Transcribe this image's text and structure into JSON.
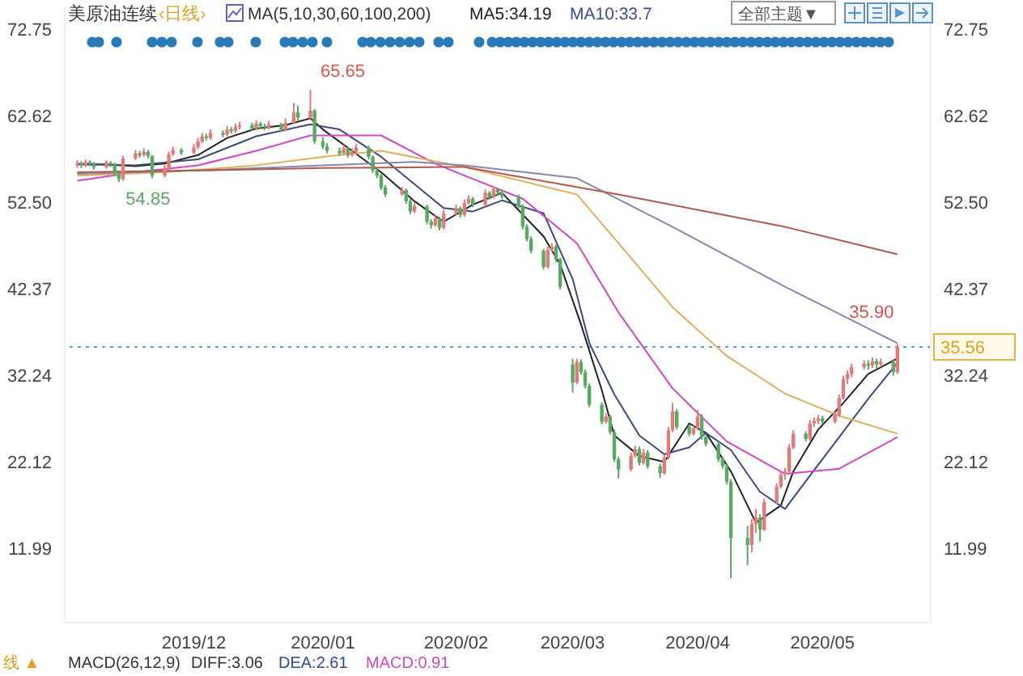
{
  "chart_data": {
    "type": "candlestick",
    "title": "美原油连续",
    "subtitle": "‹日线›",
    "x": [
      "2019-11-04",
      "2019-11-05",
      "2019-11-06",
      "2019-11-07",
      "2019-11-08",
      "2019-11-11",
      "2019-11-12",
      "2019-11-13",
      "2019-11-14",
      "2019-11-15",
      "2019-11-18",
      "2019-11-19",
      "2019-11-20",
      "2019-11-21",
      "2019-11-22",
      "2019-11-25",
      "2019-11-26",
      "2019-11-27",
      "2019-11-29",
      "2019-12-02",
      "2019-12-03",
      "2019-12-04",
      "2019-12-05",
      "2019-12-06",
      "2019-12-09",
      "2019-12-10",
      "2019-12-11",
      "2019-12-12",
      "2019-12-13",
      "2019-12-16",
      "2019-12-17",
      "2019-12-18",
      "2019-12-19",
      "2019-12-20",
      "2019-12-23",
      "2019-12-24",
      "2019-12-26",
      "2019-12-27",
      "2019-12-30",
      "2019-12-31",
      "2020-01-02",
      "2020-01-03",
      "2020-01-06",
      "2020-01-07",
      "2020-01-08",
      "2020-01-09",
      "2020-01-10",
      "2020-01-13",
      "2020-01-14",
      "2020-01-15",
      "2020-01-16",
      "2020-01-17",
      "2020-01-21",
      "2020-01-22",
      "2020-01-23",
      "2020-01-24",
      "2020-01-27",
      "2020-01-28",
      "2020-01-29",
      "2020-01-30",
      "2020-01-31",
      "2020-02-03",
      "2020-02-04",
      "2020-02-05",
      "2020-02-06",
      "2020-02-07",
      "2020-02-10",
      "2020-02-11",
      "2020-02-12",
      "2020-02-13",
      "2020-02-14",
      "2020-02-18",
      "2020-02-19",
      "2020-02-20",
      "2020-02-21",
      "2020-02-24",
      "2020-02-25",
      "2020-02-26",
      "2020-02-27",
      "2020-02-28",
      "2020-03-02",
      "2020-03-03",
      "2020-03-04",
      "2020-03-05",
      "2020-03-06",
      "2020-03-09",
      "2020-03-10",
      "2020-03-11",
      "2020-03-12",
      "2020-03-13",
      "2020-03-16",
      "2020-03-17",
      "2020-03-18",
      "2020-03-19",
      "2020-03-20",
      "2020-03-23",
      "2020-03-24",
      "2020-03-25",
      "2020-03-26",
      "2020-03-27",
      "2020-03-30",
      "2020-03-31",
      "2020-04-01",
      "2020-04-02",
      "2020-04-03",
      "2020-04-06",
      "2020-04-07",
      "2020-04-08",
      "2020-04-09",
      "2020-04-13",
      "2020-04-14",
      "2020-04-15",
      "2020-04-16",
      "2020-04-17",
      "2020-04-20",
      "2020-04-21",
      "2020-04-22",
      "2020-04-23",
      "2020-04-24",
      "2020-04-27",
      "2020-04-28",
      "2020-04-29",
      "2020-04-30",
      "2020-05-01",
      "2020-05-04",
      "2020-05-05",
      "2020-05-06",
      "2020-05-07",
      "2020-05-08",
      "2020-05-11",
      "2020-05-12",
      "2020-05-13",
      "2020-05-14",
      "2020-05-15",
      "2020-05-18",
      "2020-05-19"
    ],
    "ohlc": [
      [
        56.8,
        57.4,
        56.5,
        57.0
      ],
      [
        57.0,
        57.3,
        56.5,
        56.8
      ],
      [
        56.8,
        57.5,
        56.6,
        57.2
      ],
      [
        57.2,
        57.4,
        56.7,
        57.0
      ],
      [
        57.0,
        57.2,
        56.3,
        56.6
      ],
      [
        56.6,
        57.4,
        56.4,
        57.1
      ],
      [
        57.1,
        57.3,
        56.6,
        56.9
      ],
      [
        56.9,
        57.1,
        55.5,
        55.8
      ],
      [
        55.8,
        56.0,
        54.85,
        55.2
      ],
      [
        55.2,
        57.9,
        55.0,
        57.6
      ],
      [
        57.6,
        58.6,
        57.4,
        58.2
      ],
      [
        58.2,
        58.5,
        57.7,
        58.0
      ],
      [
        58.0,
        58.8,
        57.8,
        58.4
      ],
      [
        58.4,
        58.6,
        57.6,
        57.9
      ],
      [
        57.9,
        58.0,
        55.3,
        55.6
      ],
      [
        55.6,
        56.9,
        55.4,
        56.5
      ],
      [
        56.5,
        58.4,
        56.3,
        58.1
      ],
      [
        58.1,
        59.0,
        57.9,
        58.6
      ],
      [
        58.6,
        58.8,
        58.0,
        58.3
      ],
      [
        58.3,
        59.3,
        58.1,
        58.9
      ],
      [
        58.9,
        60.0,
        58.7,
        59.6
      ],
      [
        59.6,
        60.6,
        59.4,
        60.2
      ],
      [
        60.2,
        60.5,
        59.7,
        60.0
      ],
      [
        60.0,
        61.0,
        59.8,
        60.6
      ],
      [
        60.6,
        60.9,
        60.1,
        60.4
      ],
      [
        60.4,
        61.4,
        60.2,
        61.0
      ],
      [
        61.0,
        61.3,
        60.5,
        60.8
      ],
      [
        60.8,
        61.7,
        60.6,
        61.3
      ],
      [
        61.3,
        61.9,
        61.0,
        61.5
      ],
      [
        61.5,
        61.8,
        60.8,
        61.1
      ],
      [
        61.1,
        62.1,
        60.9,
        61.7
      ],
      [
        61.7,
        61.9,
        61.1,
        61.4
      ],
      [
        61.4,
        61.7,
        60.9,
        61.2
      ],
      [
        61.2,
        62.0,
        61.0,
        61.6
      ],
      [
        61.6,
        61.8,
        60.7,
        61.0
      ],
      [
        61.0,
        62.3,
        60.8,
        61.8
      ],
      [
        61.8,
        64.1,
        61.6,
        63.0
      ],
      [
        63.0,
        63.8,
        62.0,
        62.4
      ],
      [
        62.4,
        65.65,
        62.2,
        63.2
      ],
      [
        63.2,
        63.4,
        59.3,
        59.6
      ],
      [
        59.6,
        60.1,
        58.7,
        59.0
      ],
      [
        59.0,
        59.4,
        58.2,
        58.5
      ],
      [
        58.5,
        58.9,
        57.9,
        58.2
      ],
      [
        58.2,
        59.2,
        58.0,
        58.8
      ],
      [
        58.8,
        59.0,
        57.7,
        58.0
      ],
      [
        58.0,
        58.8,
        57.8,
        58.4
      ],
      [
        58.4,
        59.3,
        58.2,
        58.9
      ],
      [
        58.9,
        59.1,
        57.5,
        57.8
      ],
      [
        57.8,
        58.0,
        55.9,
        56.2
      ],
      [
        56.2,
        56.5,
        55.3,
        55.6
      ],
      [
        55.6,
        55.8,
        53.9,
        54.2
      ],
      [
        54.2,
        54.5,
        53.1,
        53.4
      ],
      [
        53.4,
        54.3,
        53.2,
        53.9
      ],
      [
        53.9,
        54.1,
        52.3,
        52.6
      ],
      [
        52.6,
        52.9,
        51.1,
        51.4
      ],
      [
        51.4,
        52.4,
        51.2,
        52.0
      ],
      [
        52.0,
        52.2,
        49.9,
        50.2
      ],
      [
        50.2,
        50.5,
        49.4,
        49.8
      ],
      [
        49.8,
        51.0,
        49.6,
        50.6
      ],
      [
        50.6,
        50.8,
        49.2,
        49.5
      ],
      [
        49.5,
        51.6,
        49.3,
        51.2
      ],
      [
        51.2,
        52.2,
        51.0,
        51.8
      ],
      [
        51.8,
        52.0,
        50.7,
        51.0
      ],
      [
        51.0,
        52.8,
        50.8,
        52.4
      ],
      [
        52.4,
        53.3,
        52.2,
        52.9
      ],
      [
        52.9,
        53.1,
        51.9,
        52.2
      ],
      [
        52.2,
        54.0,
        52.0,
        53.6
      ],
      [
        53.6,
        53.8,
        52.8,
        53.1
      ],
      [
        53.1,
        54.4,
        52.9,
        54.0
      ],
      [
        54.0,
        54.2,
        53.3,
        53.6
      ],
      [
        53.6,
        53.8,
        52.9,
        53.2
      ],
      [
        53.2,
        53.4,
        51.7,
        52.0
      ],
      [
        52.0,
        52.2,
        49.3,
        49.6
      ],
      [
        49.6,
        49.9,
        47.9,
        48.2
      ],
      [
        48.2,
        48.5,
        46.5,
        46.8
      ],
      [
        46.8,
        47.0,
        44.6,
        44.9
      ],
      [
        44.9,
        47.3,
        44.7,
        46.9
      ],
      [
        46.9,
        47.7,
        46.7,
        47.3
      ],
      [
        47.3,
        47.5,
        45.5,
        45.8
      ],
      [
        45.8,
        46.0,
        42.3,
        42.6
      ],
      [
        33.5,
        34.2,
        30.2,
        31.4
      ],
      [
        31.4,
        34.2,
        31.2,
        33.8
      ],
      [
        33.8,
        34.1,
        32.3,
        32.6
      ],
      [
        32.6,
        32.9,
        30.7,
        31.0
      ],
      [
        31.0,
        31.3,
        28.5,
        28.8
      ],
      [
        28.8,
        29.1,
        26.5,
        26.8
      ],
      [
        26.8,
        27.8,
        26.6,
        27.4
      ],
      [
        27.4,
        27.6,
        25.3,
        25.6
      ],
      [
        25.6,
        25.9,
        22.1,
        22.4
      ],
      [
        22.4,
        22.7,
        20.2,
        21.2
      ],
      [
        21.2,
        23.2,
        21.0,
        22.8
      ],
      [
        22.8,
        24.0,
        22.6,
        23.6
      ],
      [
        23.6,
        23.9,
        21.7,
        22.0
      ],
      [
        22.0,
        23.6,
        21.8,
        23.2
      ],
      [
        23.2,
        23.5,
        21.3,
        21.6
      ],
      [
        21.6,
        21.9,
        20.2,
        20.8
      ],
      [
        20.8,
        23.0,
        20.6,
        22.6
      ],
      [
        22.6,
        26.2,
        22.4,
        25.8
      ],
      [
        25.8,
        29.0,
        25.6,
        28.0
      ],
      [
        28.0,
        28.3,
        25.9,
        26.2
      ],
      [
        26.2,
        26.5,
        25.1,
        25.4
      ],
      [
        25.4,
        26.4,
        25.2,
        26.0
      ],
      [
        26.0,
        28.2,
        25.8,
        27.4
      ],
      [
        27.4,
        27.7,
        24.7,
        25.0
      ],
      [
        25.0,
        25.3,
        23.9,
        24.2
      ],
      [
        24.2,
        24.5,
        22.1,
        22.4
      ],
      [
        22.4,
        22.7,
        21.3,
        21.6
      ],
      [
        21.6,
        21.9,
        19.5,
        19.8
      ],
      [
        19.8,
        20.1,
        8.5,
        13.2
      ],
      [
        13.2,
        14.6,
        10.0,
        12.4
      ],
      [
        12.4,
        15.4,
        11.5,
        14.8
      ],
      [
        14.8,
        16.6,
        13.8,
        15.6
      ],
      [
        15.6,
        16.0,
        12.8,
        14.2
      ],
      [
        14.2,
        17.8,
        14.0,
        17.4
      ],
      [
        17.4,
        19.6,
        17.2,
        19.2
      ],
      [
        19.2,
        21.0,
        19.0,
        20.6
      ],
      [
        20.6,
        21.4,
        20.0,
        21.0
      ],
      [
        21.0,
        24.2,
        20.8,
        23.8
      ],
      [
        23.8,
        25.8,
        23.6,
        25.4
      ],
      [
        25.4,
        25.7,
        24.5,
        24.8
      ],
      [
        24.8,
        27.0,
        24.6,
        26.6
      ],
      [
        26.6,
        27.3,
        26.2,
        26.9
      ],
      [
        26.9,
        27.6,
        26.5,
        27.2
      ],
      [
        27.2,
        27.5,
        26.5,
        26.8
      ],
      [
        26.8,
        28.0,
        26.6,
        27.6
      ],
      [
        27.6,
        30.0,
        27.4,
        29.6
      ],
      [
        29.6,
        32.2,
        29.4,
        31.8
      ],
      [
        31.8,
        32.8,
        31.2,
        32.4
      ],
      [
        32.4,
        33.6,
        32.0,
        33.2
      ],
      [
        33.2,
        34.0,
        32.9,
        33.6
      ],
      [
        33.6,
        34.0,
        32.9,
        33.4
      ],
      [
        33.4,
        34.3,
        33.1,
        33.9
      ],
      [
        33.9,
        34.2,
        33.1,
        33.5
      ],
      [
        33.5,
        34.2,
        33.2,
        33.8
      ],
      [
        33.8,
        34.1,
        32.2,
        32.6
      ],
      [
        32.6,
        35.9,
        32.4,
        35.56
      ]
    ],
    "colors": [
      "#e07b7b",
      "#5aa864",
      "#e07b7b",
      "#5aa864",
      "#5aa864",
      "#e07b7b",
      "#5aa864",
      "#5aa864",
      "#5aa864",
      "#e07b7b",
      "#e07b7b",
      "#5aa864",
      "#e07b7b",
      "#5aa864",
      "#5aa864",
      "#e07b7b",
      "#e07b7b",
      "#e07b7b",
      "#5aa864",
      "#e07b7b",
      "#e07b7b",
      "#e07b7b",
      "#5aa864",
      "#e07b7b",
      "#5aa864",
      "#e07b7b",
      "#5aa864",
      "#e07b7b",
      "#e07b7b",
      "#5aa864",
      "#e07b7b",
      "#5aa864",
      "#5aa864",
      "#e07b7b",
      "#5aa864",
      "#e07b7b",
      "#e07b7b",
      "#5aa864",
      "#e07b7b",
      "#5aa864",
      "#5aa864",
      "#5aa864",
      "#5aa864",
      "#e07b7b",
      "#5aa864",
      "#e07b7b",
      "#e07b7b",
      "#5aa864",
      "#5aa864",
      "#5aa864",
      "#5aa864",
      "#5aa864",
      "#e07b7b",
      "#5aa864",
      "#5aa864",
      "#e07b7b",
      "#5aa864",
      "#5aa864",
      "#e07b7b",
      "#5aa864",
      "#e07b7b",
      "#e07b7b",
      "#5aa864",
      "#e07b7b",
      "#e07b7b",
      "#5aa864",
      "#e07b7b",
      "#5aa864",
      "#e07b7b",
      "#5aa864",
      "#5aa864",
      "#5aa864",
      "#5aa864",
      "#5aa864",
      "#5aa864",
      "#5aa864",
      "#e07b7b",
      "#e07b7b",
      "#5aa864",
      "#5aa864",
      "#5aa864",
      "#e07b7b",
      "#5aa864",
      "#5aa864",
      "#5aa864",
      "#5aa864",
      "#e07b7b",
      "#5aa864",
      "#5aa864",
      "#5aa864",
      "#e07b7b",
      "#e07b7b",
      "#5aa864",
      "#e07b7b",
      "#5aa864",
      "#5aa864",
      "#e07b7b",
      "#e07b7b",
      "#e07b7b",
      "#5aa864",
      "#5aa864",
      "#e07b7b",
      "#e07b7b",
      "#5aa864",
      "#5aa864",
      "#5aa864",
      "#5aa864",
      "#5aa864",
      "#5aa864",
      "#5aa864",
      "#e07b7b",
      "#e07b7b",
      "#5aa864",
      "#e07b7b",
      "#e07b7b",
      "#e07b7b",
      "#e07b7b",
      "#e07b7b",
      "#e07b7b",
      "#5aa864",
      "#e07b7b",
      "#e07b7b",
      "#e07b7b",
      "#5aa864",
      "#e07b7b",
      "#e07b7b",
      "#e07b7b",
      "#e07b7b",
      "#e07b7b",
      "#e07b7b",
      "#5aa864",
      "#e07b7b",
      "#5aa864",
      "#e07b7b",
      "#5aa864",
      "#e07b7b"
    ],
    "series": [
      {
        "type": "line",
        "color": "#222222",
        "x": [
          "2019-11-04",
          "2019-11-11",
          "2019-11-18",
          "2019-11-25",
          "2019-12-03",
          "2019-12-10",
          "2019-12-17",
          "2019-12-24",
          "2019-12-30",
          "2020-01-02",
          "2020-01-09",
          "2020-01-16",
          "2020-01-24",
          "2020-01-31",
          "2020-02-07",
          "2020-02-14",
          "2020-02-24",
          "2020-02-28",
          "2020-03-04",
          "2020-03-09",
          "2020-03-12",
          "2020-03-18",
          "2020-03-24",
          "2020-03-30",
          "2020-04-03",
          "2020-04-09",
          "2020-04-15",
          "2020-04-21",
          "2020-04-24",
          "2020-04-30",
          "2020-05-06",
          "2020-05-12",
          "2020-05-19"
        ],
        "values": [
          56.9,
          56.9,
          56.7,
          57.0,
          58.0,
          60.0,
          61.1,
          61.5,
          62.3,
          61.0,
          58.5,
          56.0,
          52.6,
          50.2,
          52.2,
          53.6,
          48.5,
          45.2,
          38.2,
          30.5,
          25.2,
          22.8,
          22.1,
          26.6,
          25.5,
          21.0,
          15.0,
          17.0,
          21.0,
          25.9,
          29.0,
          32.4,
          34.2
        ]
      },
      {
        "type": "line",
        "color": "#3b4a7a",
        "x": [
          "2019-11-04",
          "2019-11-18",
          "2019-12-03",
          "2019-12-17",
          "2019-12-30",
          "2020-01-06",
          "2020-01-16",
          "2020-01-24",
          "2020-01-31",
          "2020-02-07",
          "2020-02-14",
          "2020-02-24",
          "2020-03-02",
          "2020-03-06",
          "2020-03-12",
          "2020-03-18",
          "2020-03-24",
          "2020-03-30",
          "2020-04-03",
          "2020-04-09",
          "2020-04-16",
          "2020-04-22",
          "2020-04-28",
          "2020-05-05",
          "2020-05-12",
          "2020-05-19"
        ],
        "values": [
          57.0,
          56.8,
          57.5,
          60.2,
          61.6,
          61.0,
          57.8,
          54.6,
          51.8,
          51.4,
          52.7,
          51.2,
          43.5,
          36.0,
          30.0,
          25.2,
          23.0,
          23.8,
          25.5,
          23.5,
          18.6,
          16.6,
          20.5,
          25.0,
          29.5,
          33.7
        ]
      },
      {
        "type": "line",
        "color": "#d048c8",
        "x": [
          "2019-11-04",
          "2019-11-18",
          "2019-12-03",
          "2019-12-17",
          "2019-12-30",
          "2020-01-16",
          "2020-01-29",
          "2020-02-05",
          "2020-02-19",
          "2020-03-03",
          "2020-03-13",
          "2020-03-26",
          "2020-04-08",
          "2020-04-22",
          "2020-05-05",
          "2020-05-19"
        ],
        "values": [
          55.0,
          56.0,
          56.8,
          58.5,
          60.3,
          60.3,
          57.0,
          55.6,
          52.9,
          47.7,
          39.6,
          30.7,
          24.5,
          20.7,
          21.3,
          25.0
        ]
      },
      {
        "type": "line",
        "color": "#e0b060",
        "x": [
          "2019-11-04",
          "2019-11-25",
          "2019-12-17",
          "2020-01-02",
          "2020-01-16",
          "2020-02-05",
          "2020-03-03",
          "2020-03-13",
          "2020-03-26",
          "2020-04-08",
          "2020-04-22",
          "2020-05-05",
          "2020-05-19"
        ],
        "values": [
          55.6,
          56.0,
          56.8,
          57.8,
          58.5,
          56.6,
          53.4,
          47.7,
          40.2,
          34.5,
          30.1,
          27.5,
          25.4
        ]
      },
      {
        "type": "line",
        "color": "#8a86a8",
        "x": [
          "2019-11-04",
          "2019-12-03",
          "2020-01-02",
          "2020-01-24",
          "2020-02-05",
          "2020-03-03",
          "2020-03-26",
          "2020-04-22",
          "2020-05-19"
        ],
        "values": [
          55.8,
          56.2,
          56.8,
          57.2,
          56.8,
          55.3,
          49.6,
          42.6,
          36.0
        ]
      },
      {
        "type": "line",
        "color": "#b0584e",
        "x": [
          "2019-11-04",
          "2019-12-03",
          "2020-01-02",
          "2020-01-31",
          "2020-02-05",
          "2020-03-13",
          "2020-04-22",
          "2020-05-19"
        ],
        "values": [
          56.0,
          56.2,
          56.5,
          56.6,
          56.6,
          53.4,
          49.6,
          46.4
        ]
      }
    ],
    "xlim": [
      "2019-11-01",
      "2020-05-27"
    ],
    "xticks": [
      {
        "value": "2019-12-02",
        "label": "2019/12"
      },
      {
        "value": "2020-01-02",
        "label": "2020/01"
      },
      {
        "value": "2020-02-03",
        "label": "2020/02"
      },
      {
        "value": "2020-03-02",
        "label": "2020/03"
      },
      {
        "value": "2020-04-01",
        "label": "2020/04"
      },
      {
        "value": "2020-05-01",
        "label": "2020/05"
      }
    ],
    "ylim": [
      3.3,
      75.2
    ],
    "yticks": [
      11.99,
      22.12,
      32.24,
      42.37,
      {
        "value": 52.5,
        "label": "52.50"
      },
      62.62,
      72.75
    ],
    "y2lim": [
      3.3,
      75.2
    ],
    "y2ticks": [
      11.99,
      22.12,
      32.24,
      42.37,
      {
        "value": 52.5,
        "label": "52.50"
      },
      62.62,
      72.75
    ],
    "ref_lines": [
      {
        "axis": "y2",
        "value": 35.56,
        "label": "35.56",
        "color": "#5ba3d6",
        "line_style": "dotted"
      }
    ],
    "annotations": [
      {
        "text": "65.65",
        "x": "2019-12-30",
        "y": 65.65
      },
      {
        "text": "54.85",
        "x": "2019-11-14",
        "y": 54.85
      },
      {
        "text": "35.90",
        "x": "2020-05-19",
        "y": 35.9
      },
      "MA(5,10,30,60,100,200)",
      "MA5:34.19",
      "MA10:33.7",
      "全部主题▼",
      "线 ▲",
      "MACD(26,12,9)",
      "DIFF:3.06",
      "DEA:2.61",
      "MACD:0.91"
    ]
  }
}
